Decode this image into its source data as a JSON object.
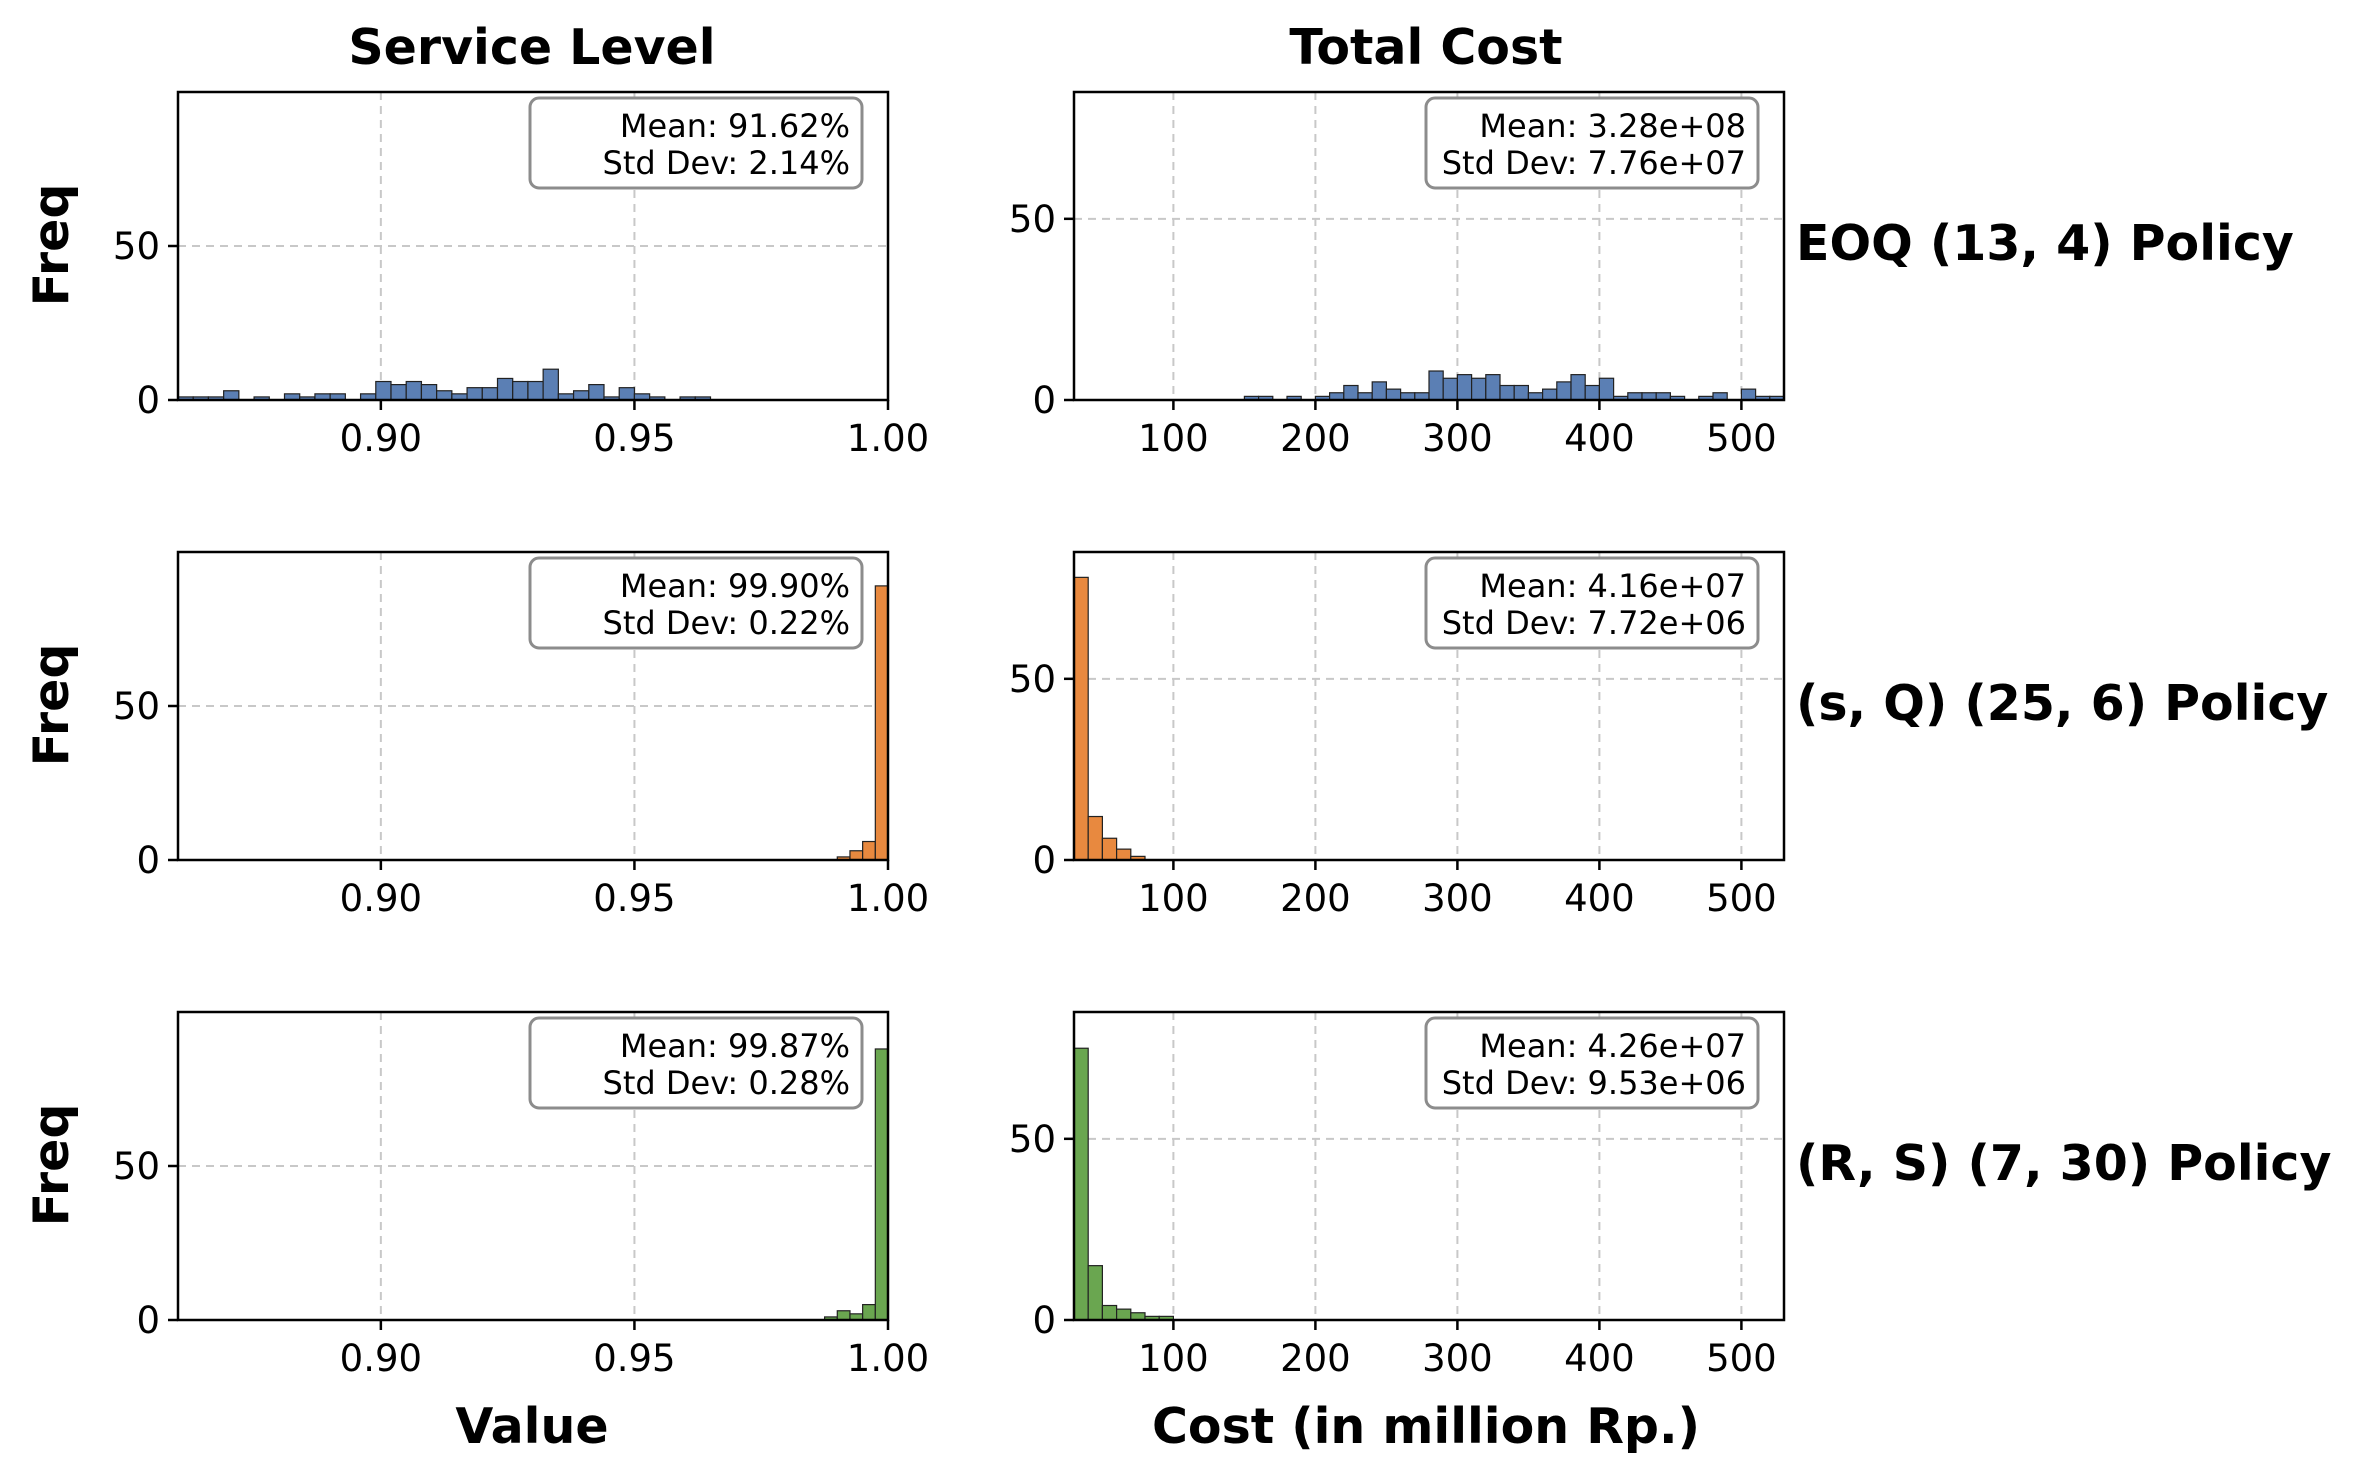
{
  "figure": {
    "col_titles": [
      "Service Level",
      "Total Cost"
    ],
    "ylabel": "Freq",
    "xlabels": [
      "Value",
      "Cost (in million Rp.)"
    ]
  },
  "colors": {
    "EOQ": "#5b7fb4",
    "sQ": "#e8893f",
    "RS": "#6aa650"
  },
  "chart_data": [
    {
      "type": "bar",
      "policy": "EOQ (13, 4) Policy",
      "metric": "Service Level",
      "color": "EOQ",
      "xlim": [
        0.86,
        1.0
      ],
      "ylim": [
        0,
        100
      ],
      "xticks": [
        "0.90",
        "0.95",
        "1.00"
      ],
      "yticks": [
        "0",
        "50"
      ],
      "bin_width": 0.003,
      "bins": [
        [
          0.86,
          1
        ],
        [
          0.863,
          1
        ],
        [
          0.866,
          1
        ],
        [
          0.869,
          3
        ],
        [
          0.872,
          0
        ],
        [
          0.875,
          1
        ],
        [
          0.878,
          0
        ],
        [
          0.881,
          2
        ],
        [
          0.884,
          1
        ],
        [
          0.887,
          2
        ],
        [
          0.89,
          2
        ],
        [
          0.893,
          0
        ],
        [
          0.896,
          2
        ],
        [
          0.899,
          6
        ],
        [
          0.902,
          5
        ],
        [
          0.905,
          6
        ],
        [
          0.908,
          5
        ],
        [
          0.911,
          3
        ],
        [
          0.914,
          2
        ],
        [
          0.917,
          4
        ],
        [
          0.92,
          4
        ],
        [
          0.923,
          7
        ],
        [
          0.926,
          6
        ],
        [
          0.929,
          6
        ],
        [
          0.932,
          10
        ],
        [
          0.935,
          2
        ],
        [
          0.938,
          3
        ],
        [
          0.941,
          5
        ],
        [
          0.944,
          1
        ],
        [
          0.947,
          4
        ],
        [
          0.95,
          2
        ],
        [
          0.953,
          1
        ],
        [
          0.956,
          0
        ],
        [
          0.959,
          1
        ],
        [
          0.962,
          1
        ],
        [
          0.965,
          0
        ]
      ],
      "stats": {
        "mean": "Mean: 91.62%",
        "std": "Std Dev: 2.14%"
      }
    },
    {
      "type": "bar",
      "policy": "EOQ (13, 4) Policy",
      "metric": "Total Cost",
      "color": "EOQ",
      "xlim": [
        30,
        530
      ],
      "ylim": [
        0,
        85
      ],
      "xticks": [
        "100",
        "200",
        "300",
        "400",
        "500"
      ],
      "yticks": [
        "0",
        "50"
      ],
      "bin_width": 10,
      "bins": [
        [
          150,
          1
        ],
        [
          160,
          1
        ],
        [
          180,
          1
        ],
        [
          200,
          1
        ],
        [
          210,
          2
        ],
        [
          220,
          4
        ],
        [
          230,
          2
        ],
        [
          240,
          5
        ],
        [
          250,
          3
        ],
        [
          260,
          2
        ],
        [
          270,
          2
        ],
        [
          280,
          8
        ],
        [
          290,
          6
        ],
        [
          300,
          7
        ],
        [
          310,
          6
        ],
        [
          320,
          7
        ],
        [
          330,
          4
        ],
        [
          340,
          4
        ],
        [
          350,
          2
        ],
        [
          360,
          3
        ],
        [
          370,
          5
        ],
        [
          380,
          7
        ],
        [
          390,
          4
        ],
        [
          400,
          6
        ],
        [
          410,
          1
        ],
        [
          420,
          2
        ],
        [
          430,
          2
        ],
        [
          440,
          2
        ],
        [
          450,
          1
        ],
        [
          470,
          1
        ],
        [
          480,
          2
        ],
        [
          500,
          3
        ],
        [
          510,
          1
        ],
        [
          520,
          1
        ]
      ],
      "stats": {
        "mean": "Mean: 3.28e+08",
        "std": "Std Dev: 7.76e+07"
      }
    },
    {
      "type": "bar",
      "policy": "(s, Q) (25, 6) Policy",
      "metric": "Service Level",
      "color": "sQ",
      "xlim": [
        0.86,
        1.0
      ],
      "ylim": [
        0,
        100
      ],
      "xticks": [
        "0.90",
        "0.95",
        "1.00"
      ],
      "yticks": [
        "0",
        "50"
      ],
      "bin_width": 0.0025,
      "bins": [
        [
          0.99,
          1
        ],
        [
          0.9925,
          3
        ],
        [
          0.995,
          6
        ],
        [
          0.9975,
          89
        ]
      ],
      "stats": {
        "mean": "Mean: 99.90%",
        "std": "Std Dev: 0.22%"
      }
    },
    {
      "type": "bar",
      "policy": "(s, Q) (25, 6) Policy",
      "metric": "Total Cost",
      "color": "sQ",
      "xlim": [
        30,
        530
      ],
      "ylim": [
        0,
        85
      ],
      "xticks": [
        "100",
        "200",
        "300",
        "400",
        "500"
      ],
      "yticks": [
        "0",
        "50"
      ],
      "bin_width": 10,
      "bins": [
        [
          30,
          78
        ],
        [
          40,
          12
        ],
        [
          50,
          6
        ],
        [
          60,
          3
        ],
        [
          70,
          1
        ]
      ],
      "stats": {
        "mean": "Mean: 4.16e+07",
        "std": "Std Dev: 7.72e+06"
      }
    },
    {
      "type": "bar",
      "policy": "(R, S) (7, 30) Policy",
      "metric": "Service Level",
      "color": "RS",
      "xlim": [
        0.86,
        1.0
      ],
      "ylim": [
        0,
        100
      ],
      "xticks": [
        "0.90",
        "0.95",
        "1.00"
      ],
      "yticks": [
        "0",
        "50"
      ],
      "bin_width": 0.0025,
      "bins": [
        [
          0.9875,
          1
        ],
        [
          0.99,
          3
        ],
        [
          0.9925,
          2
        ],
        [
          0.995,
          5
        ],
        [
          0.9975,
          88
        ]
      ],
      "stats": {
        "mean": "Mean: 99.87%",
        "std": "Std Dev: 0.28%"
      }
    },
    {
      "type": "bar",
      "policy": "(R, S) (7, 30) Policy",
      "metric": "Total Cost",
      "color": "RS",
      "xlim": [
        30,
        530
      ],
      "ylim": [
        0,
        85
      ],
      "xticks": [
        "100",
        "200",
        "300",
        "400",
        "500"
      ],
      "yticks": [
        "0",
        "50"
      ],
      "bin_width": 10,
      "bins": [
        [
          30,
          75
        ],
        [
          40,
          15
        ],
        [
          50,
          4
        ],
        [
          60,
          3
        ],
        [
          70,
          2
        ],
        [
          80,
          1
        ],
        [
          90,
          1
        ]
      ],
      "stats": {
        "mean": "Mean: 4.26e+07",
        "std": "Std Dev: 9.53e+06"
      }
    }
  ]
}
